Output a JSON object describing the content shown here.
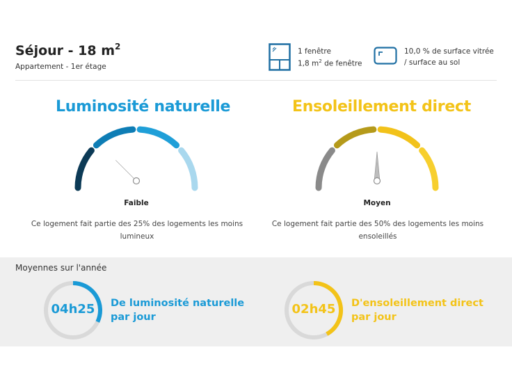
{
  "room": {
    "title": "Séjour - 18 m",
    "title_sup": "2",
    "subtitle": "Appartement - 1er étage"
  },
  "windows": {
    "icon": "window-icon",
    "count": "1 fenêtre",
    "area_prefix": "1,8 m",
    "area_sup": "2",
    "area_suffix": " de fenêtre"
  },
  "glazing": {
    "icon": "frame-corner-icon",
    "line1": "10,0 % de surface vitrée",
    "line2": "/ surface au sol"
  },
  "gauges": [
    {
      "title": "Luminosité naturelle",
      "level": "Faible",
      "level_value": 0.25,
      "description": "Ce logement fait partie des 25% des logements les moins lumineux",
      "colors": [
        "#0c3a56",
        "#0e7db5",
        "#1f9fd8",
        "#a9d8ee"
      ],
      "title_color": "#1a9ad6"
    },
    {
      "title": "Ensoleillement direct",
      "level": "Moyen",
      "level_value": 0.5,
      "description": "Ce logement fait partie des 50% des logements les moins ensoleillés",
      "colors": [
        "#8a8a8a",
        "#b59a1a",
        "#f2c21a",
        "#f7cf2e"
      ],
      "title_color": "#f3c318"
    }
  ],
  "averages": {
    "title": "Moyennes sur l'année",
    "items": [
      {
        "value": "04h25",
        "label_line1": "De luminosité naturelle",
        "label_line2": "par jour",
        "color": "#1a9ad6",
        "fraction": 0.32
      },
      {
        "value": "02h45",
        "label_line1": "D'ensoleillement direct",
        "label_line2": "par jour",
        "color": "#f3c318",
        "fraction": 0.42
      }
    ]
  }
}
